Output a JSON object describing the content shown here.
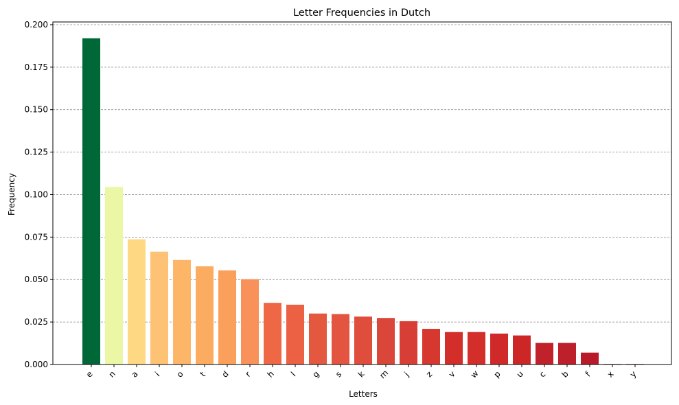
{
  "chart_data": {
    "type": "bar",
    "title": "Letter Frequencies in Dutch",
    "xlabel": "Letters",
    "ylabel": "Frequency",
    "ylim": [
      0,
      0.2016
    ],
    "yticks": [
      "0.000",
      "0.025",
      "0.050",
      "0.075",
      "0.100",
      "0.125",
      "0.150",
      "0.175",
      "0.200"
    ],
    "grid": "y-dashed",
    "categories": [
      "e",
      "n",
      "a",
      "i",
      "o",
      "t",
      "d",
      "r",
      "h",
      "l",
      "g",
      "s",
      "k",
      "m",
      "j",
      "z",
      "v",
      "w",
      "p",
      "u",
      "c",
      "b",
      "f",
      "x",
      "y"
    ],
    "values": [
      0.192,
      0.1045,
      0.0737,
      0.0664,
      0.0615,
      0.0578,
      0.0554,
      0.0502,
      0.0363,
      0.0352,
      0.03,
      0.0297,
      0.0282,
      0.0274,
      0.0255,
      0.021,
      0.0191,
      0.0191,
      0.0182,
      0.0171,
      0.0127,
      0.0127,
      0.007,
      0.0003,
      0.0003
    ],
    "colors": [
      "#006837",
      "#ecf7a6",
      "#fed883",
      "#fdc273",
      "#fdb567",
      "#fcac60",
      "#fba05b",
      "#f8925a",
      "#ef6845",
      "#ec6044",
      "#e45840",
      "#e35540",
      "#df4d3c",
      "#db463a",
      "#d73e35",
      "#d6382f",
      "#d32e2a",
      "#d32e2a",
      "#d02929",
      "#cc2627",
      "#c0212a",
      "#bd1f2b",
      "#b81a2a",
      "#a50026",
      "#a50026"
    ]
  }
}
